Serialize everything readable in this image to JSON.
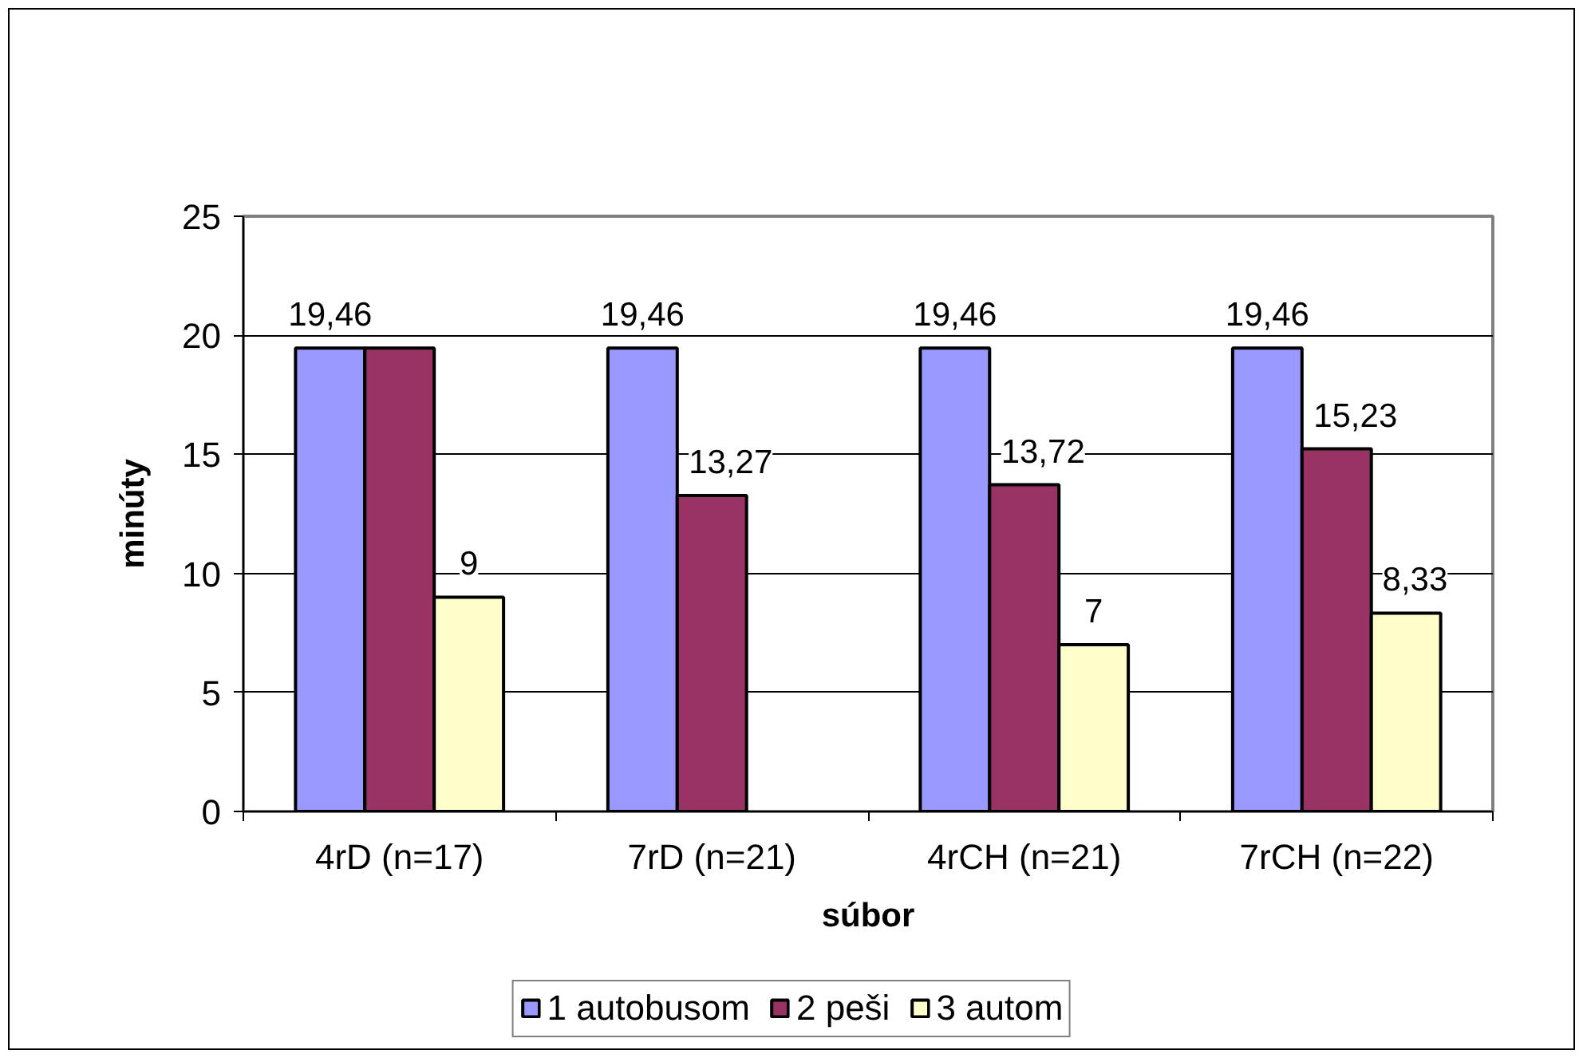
{
  "chart_data": {
    "type": "bar",
    "categories": [
      "4rD (n=17)",
      "7rD (n=21)",
      "4rCH (n=21)",
      "7rCH (n=22)"
    ],
    "xlabel": "súbor",
    "ylabel": "minúty",
    "ylim": [
      0,
      25
    ],
    "yticks": [
      0,
      5,
      10,
      15,
      20,
      25
    ],
    "grid": "y",
    "legend": "bottom",
    "series": [
      {
        "name": "1 autobusom",
        "color": "#9999ff",
        "values": [
          19.46,
          19.46,
          19.46,
          19.46
        ],
        "value_labels": [
          "19,46",
          "19,46",
          "19,46",
          "19,46"
        ]
      },
      {
        "name": "2 peši",
        "color": "#993366",
        "values": [
          19.46,
          13.27,
          13.72,
          15.23
        ],
        "value_labels": [
          null,
          "13,27",
          "13,72",
          "15,23"
        ]
      },
      {
        "name": "3 autom",
        "color": "#ffffcc",
        "values": [
          9,
          null,
          7,
          8.33
        ],
        "value_labels": [
          "9",
          null,
          "7",
          "8,33"
        ]
      }
    ]
  }
}
